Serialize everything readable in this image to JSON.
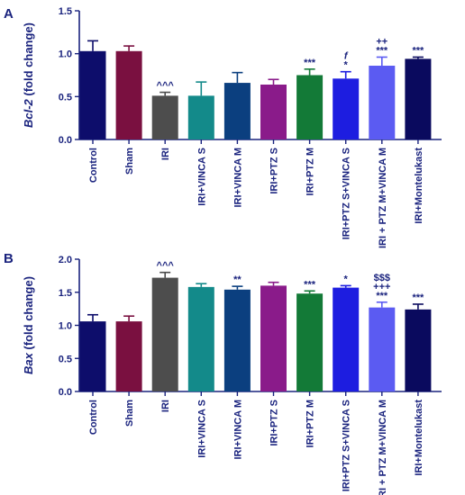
{
  "chart_data": [
    {
      "panel": "A",
      "type": "bar",
      "ylabel": "Bcl-2 (fold change)",
      "ylabel_italic": "Bcl-2",
      "ylabel_rest": " (fold change)",
      "ylim": [
        0,
        1.5
      ],
      "yticks": [
        "0.0",
        "0.5",
        "1.0",
        "1.5"
      ],
      "grid": false,
      "categories": [
        "Control",
        "Sham",
        "IRI",
        "IRI+VINCA S",
        "IRI+VINCA M",
        "IRI+PTZ S",
        "IRI+PTZ M",
        "IRI+PTZ S+VINCA S",
        "IRI + PTZ M+VINCA M",
        "IRI+Montelukast"
      ],
      "values": [
        1.03,
        1.03,
        0.51,
        0.51,
        0.66,
        0.64,
        0.75,
        0.71,
        0.86,
        0.94
      ],
      "errors": [
        0.12,
        0.06,
        0.04,
        0.16,
        0.12,
        0.06,
        0.07,
        0.08,
        0.1,
        0.02
      ],
      "colors": [
        "#0d0d6b",
        "#7a1040",
        "#4d4d4d",
        "#138a8a",
        "#0b3f7f",
        "#8a1b8a",
        "#137a37",
        "#1d1de0",
        "#5b5bf2",
        "#0a0a5e"
      ],
      "annotations": [
        "",
        "",
        "^^^",
        "",
        "",
        "",
        "***",
        "*\nf",
        "***\n++",
        "***"
      ]
    },
    {
      "panel": "B",
      "type": "bar",
      "ylabel": "Bax (fold change)",
      "ylabel_italic": "Bax",
      "ylabel_rest": " (fold change)",
      "ylim": [
        0,
        2.0
      ],
      "yticks": [
        "0.0",
        "0.5",
        "1.0",
        "1.5",
        "2.0"
      ],
      "grid": false,
      "categories": [
        "Control",
        "Sham",
        "IRI",
        "IRI+VINCA S",
        "IRI+VINCA M",
        "IRI+PTZ S",
        "IRI+PTZ M",
        "IRI+PTZ S+VINCA S",
        "IRI + PTZ M+VINCA M",
        "IRI+Montelukast"
      ],
      "values": [
        1.06,
        1.06,
        1.72,
        1.58,
        1.54,
        1.6,
        1.48,
        1.57,
        1.27,
        1.24
      ],
      "errors": [
        0.1,
        0.08,
        0.08,
        0.05,
        0.05,
        0.05,
        0.04,
        0.03,
        0.08,
        0.08
      ],
      "colors": [
        "#0d0d6b",
        "#7a1040",
        "#4d4d4d",
        "#138a8a",
        "#0b3f7f",
        "#8a1b8a",
        "#137a37",
        "#1d1de0",
        "#5b5bf2",
        "#0a0a5e"
      ],
      "annotations": [
        "",
        "",
        "^^^",
        "",
        "**",
        "",
        "***",
        "*",
        "***\n+++\n$$$",
        "***"
      ]
    }
  ]
}
